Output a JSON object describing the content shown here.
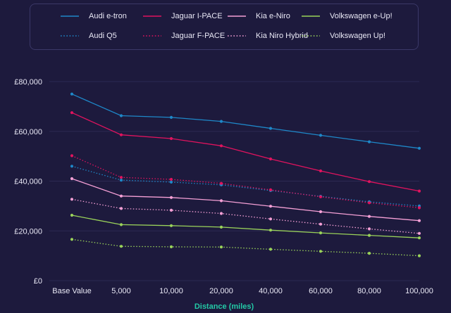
{
  "chart_data": {
    "type": "line",
    "xlabel": "Distance (miles)",
    "ylabel": "",
    "categories": [
      "Base Value",
      "5,000",
      "10,000",
      "20,000",
      "40,000",
      "60,000",
      "80,000",
      "100,000"
    ],
    "ylim": [
      0,
      80000
    ],
    "yticks": [
      0,
      20000,
      40000,
      60000,
      80000
    ],
    "ytick_labels": [
      "£0",
      "£20,000",
      "£40,000",
      "£60,000",
      "£80,000"
    ],
    "grid": true,
    "legend_position": "top",
    "series": [
      {
        "name": "Audi e-tron",
        "style": "solid",
        "color": "#1e88c9",
        "values": [
          75000,
          66300,
          65600,
          64000,
          61200,
          58400,
          55800,
          53200
        ]
      },
      {
        "name": "Jaguar I-PACE",
        "style": "solid",
        "color": "#e0135e",
        "values": [
          67500,
          58600,
          57100,
          54200,
          48900,
          44100,
          39800,
          36000
        ]
      },
      {
        "name": "Kia e-Niro",
        "style": "solid",
        "color": "#f5a0d6",
        "values": [
          41000,
          34000,
          33400,
          32100,
          29900,
          27700,
          25800,
          24100
        ]
      },
      {
        "name": "Volkswagen e-Up!",
        "style": "solid",
        "color": "#9ad35a",
        "values": [
          26300,
          22500,
          22100,
          21500,
          20300,
          19200,
          18200,
          17200
        ]
      },
      {
        "name": "Audi Q5",
        "style": "dotted",
        "color": "#1e88c9",
        "values": [
          46000,
          40400,
          39600,
          38500,
          36200,
          33900,
          31700,
          30000
        ]
      },
      {
        "name": "Jaguar F-PACE",
        "style": "dotted",
        "color": "#e0135e",
        "values": [
          50200,
          41500,
          40700,
          39100,
          36500,
          33700,
          31300,
          29300
        ]
      },
      {
        "name": "Kia Niro Hybrid",
        "style": "dotted",
        "color": "#f5a0d6",
        "values": [
          32700,
          29000,
          28300,
          27000,
          24800,
          22700,
          20800,
          19000
        ]
      },
      {
        "name": "Volkswagen Up!",
        "style": "dotted",
        "color": "#9ad35a",
        "values": [
          16600,
          13800,
          13600,
          13500,
          12600,
          11800,
          11000,
          10000
        ]
      }
    ]
  },
  "colors": {
    "background": "#1d1a3d",
    "grid": "#2c2953",
    "axis_title": "#23c9a6",
    "text": "#e9e8f5",
    "legend_border": "#3b3868"
  }
}
